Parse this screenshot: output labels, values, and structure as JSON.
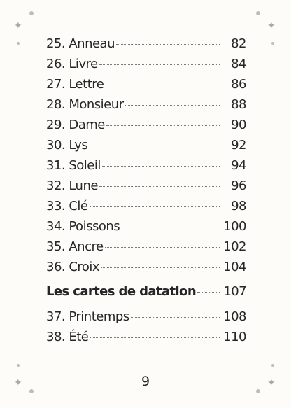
{
  "entries_top": [
    {
      "label": "25. Anneau",
      "page": "82"
    },
    {
      "label": "26. Livre",
      "page": "84"
    },
    {
      "label": "27. Lettre",
      "page": "86"
    },
    {
      "label": "28. Monsieur",
      "page": "88"
    },
    {
      "label": "29. Dame",
      "page": "90"
    },
    {
      "label": "30. Lys",
      "page": "92"
    },
    {
      "label": "31. Soleil",
      "page": "94"
    },
    {
      "label": "32. Lune",
      "page": "96"
    },
    {
      "label": "33. Clé",
      "page": "98"
    },
    {
      "label": "34. Poissons",
      "page": "100"
    },
    {
      "label": "35. Ancre",
      "page": "102"
    },
    {
      "label": "36. Croix",
      "page": "104"
    }
  ],
  "section": {
    "label": "Les cartes de datation",
    "page": "107"
  },
  "entries_bottom": [
    {
      "label": "37. Printemps",
      "page": "108"
    },
    {
      "label": "38. Été",
      "page": "110"
    }
  ],
  "page_number": "9",
  "ornament_glyph": "✦",
  "ornament_color": "#a9a9a9"
}
